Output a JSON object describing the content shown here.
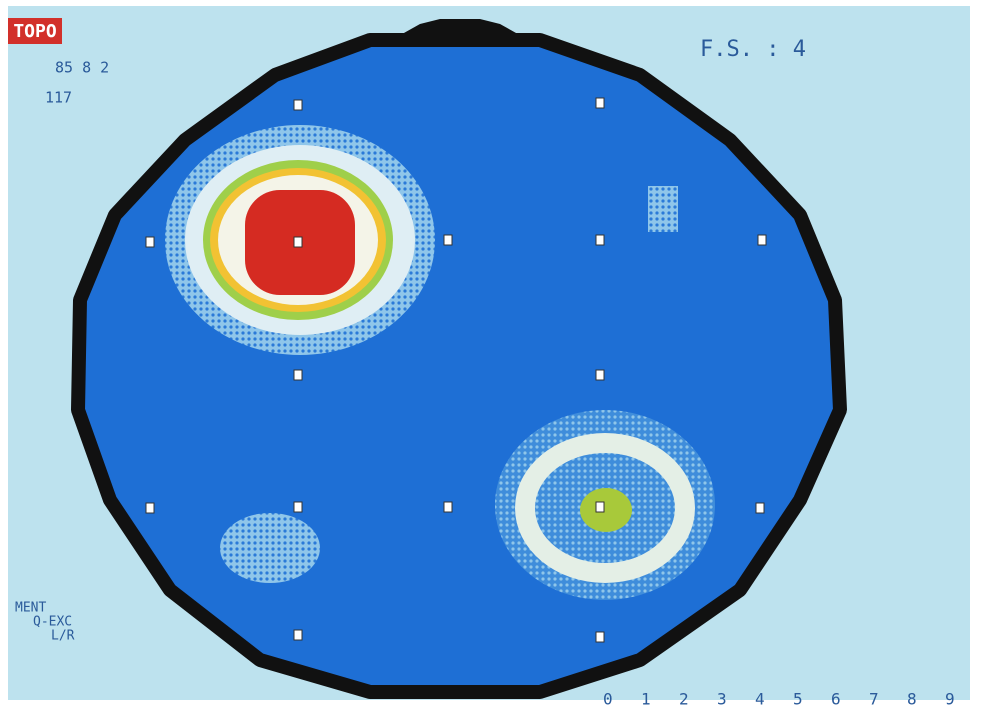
{
  "header": {
    "badge": "TOPO",
    "date": "85 8 2",
    "number": "117",
    "fs": "F.S. : 4"
  },
  "footer": {
    "lines": [
      "MENT",
      "Q-EXC",
      "L/R"
    ]
  },
  "scale": [
    "0",
    "1",
    "2",
    "3",
    "4",
    "5",
    "6",
    "7",
    "8",
    "9"
  ]
}
